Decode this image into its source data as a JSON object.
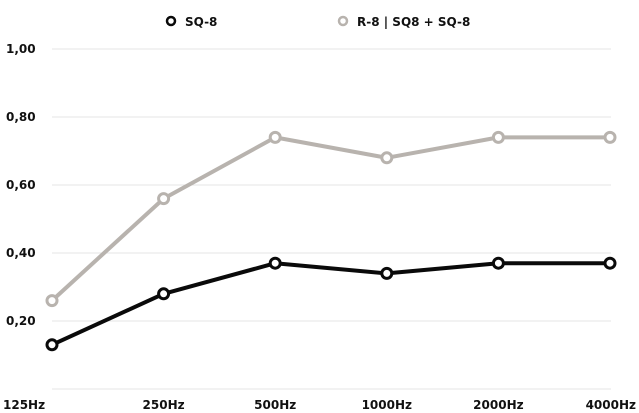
{
  "chart_data": {
    "type": "line",
    "categories": [
      "125Hz",
      "250Hz",
      "500Hz",
      "1000Hz",
      "2000Hz",
      "4000Hz"
    ],
    "series": [
      {
        "name": "SQ-8",
        "values": [
          0.13,
          0.28,
          0.37,
          0.34,
          0.37,
          0.37
        ],
        "color": "#0a0a0a"
      },
      {
        "name": "R-8 | SQ8 + SQ-8",
        "values": [
          0.26,
          0.56,
          0.74,
          0.68,
          0.74,
          0.74
        ],
        "color": "#b8b3ae"
      }
    ],
    "ylim": [
      0,
      1.0
    ],
    "yticks": [
      0.2,
      0.4,
      0.6,
      0.8,
      1.0
    ],
    "ytick_labels": [
      "0,20",
      "0,40",
      "0,60",
      "0,80",
      "1,00"
    ],
    "grid": true,
    "legend_position": "top"
  }
}
